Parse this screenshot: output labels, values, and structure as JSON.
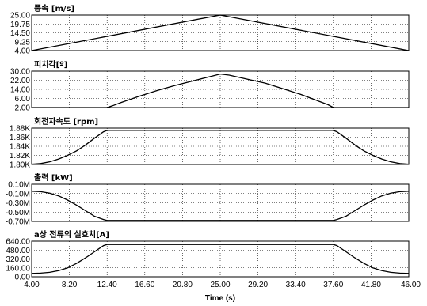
{
  "chart_data": {
    "type": "line",
    "xlabel": "Time (s)",
    "xlim": [
      4.0,
      46.0
    ],
    "x_ticks": [
      "4.00",
      "8.20",
      "12.40",
      "16.60",
      "20.80",
      "25.00",
      "29.20",
      "33.40",
      "37.60",
      "41.80",
      "46.00"
    ],
    "grid": true,
    "panels": [
      {
        "title": "풍속 [m/s]",
        "ylim": [
          4.0,
          25.0
        ],
        "y_ticks": [
          "25.00",
          "19.75",
          "14.50",
          "9.25",
          "4.00"
        ],
        "x": [
          4,
          25,
          46
        ],
        "y": [
          4,
          25,
          4
        ]
      },
      {
        "title": "피치각[º]",
        "ylim": [
          -2.0,
          30.0
        ],
        "y_ticks": [
          "30.00",
          "22.00",
          "14.00",
          "6.00",
          "-2.00"
        ],
        "x": [
          4,
          12.4,
          13,
          14,
          16,
          18,
          20,
          22,
          24,
          25,
          26,
          28,
          30,
          32,
          34,
          36,
          37,
          37.6,
          46
        ],
        "y": [
          -2,
          -2,
          -0.5,
          2.5,
          8,
          13,
          17.5,
          21.5,
          25.5,
          27.5,
          26.5,
          23,
          19.5,
          14.5,
          9.5,
          3.5,
          0.5,
          -2,
          -2
        ]
      },
      {
        "title": "회전자속도 [rpm]",
        "ylim": [
          1800,
          1880
        ],
        "y_ticks": [
          "1.88K",
          "1.86K",
          "1.84K",
          "1.82K",
          "1.80K"
        ],
        "x": [
          4,
          5,
          6,
          7,
          8,
          9,
          10,
          11,
          12,
          12.4,
          37.6,
          38,
          39,
          40,
          41,
          42,
          43,
          44,
          45,
          46
        ],
        "y": [
          1800.5,
          1802,
          1806,
          1812,
          1820,
          1830,
          1843,
          1858,
          1872,
          1875,
          1875,
          1872,
          1858,
          1843,
          1830,
          1820,
          1812,
          1806,
          1802,
          1800.5
        ]
      },
      {
        "title": "출력 [kW]",
        "ylim": [
          -700000,
          100000
        ],
        "y_ticks": [
          "0.10M",
          "-0.10M",
          "-0.30M",
          "-0.50M",
          "-0.70M"
        ],
        "x": [
          4,
          5,
          6,
          7,
          8,
          9,
          10,
          11,
          12,
          12.4,
          37.6,
          38,
          39,
          40,
          41,
          42,
          43,
          44,
          45,
          46
        ],
        "y": [
          -50000,
          -60000,
          -90000,
          -150000,
          -240000,
          -350000,
          -470000,
          -590000,
          -660000,
          -680000,
          -680000,
          -660000,
          -590000,
          -470000,
          -350000,
          -240000,
          -150000,
          -90000,
          -60000,
          -50000
        ]
      },
      {
        "title": "a상 전류의 실효치[A]",
        "ylim": [
          0,
          640
        ],
        "y_ticks": [
          "640.00",
          "480.00",
          "320.00",
          "160.00",
          "0.00"
        ],
        "x": [
          4,
          5,
          6,
          7,
          8,
          9,
          10,
          11,
          12,
          12.4,
          37.6,
          38,
          39,
          40,
          41,
          42,
          43,
          44,
          45,
          46
        ],
        "y": [
          60,
          65,
          80,
          110,
          160,
          240,
          340,
          450,
          560,
          580,
          580,
          560,
          450,
          340,
          240,
          160,
          110,
          80,
          65,
          60
        ]
      }
    ]
  }
}
